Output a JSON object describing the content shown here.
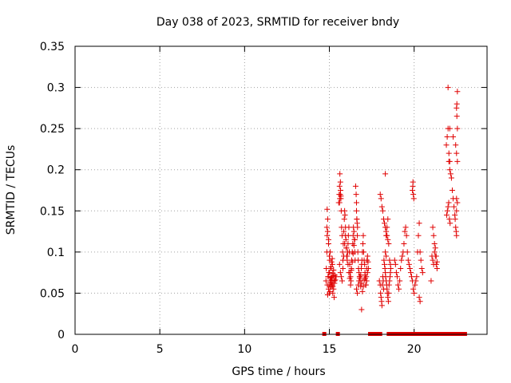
{
  "chart_data": {
    "type": "scatter",
    "title": "Day 038 of 2023, SRMTID for receiver bndy",
    "xlabel": "GPS time / hours",
    "ylabel": "SRMTID / TECUs",
    "xlim": [
      0,
      24.3
    ],
    "ylim": [
      0,
      0.35
    ],
    "xticks": [
      0,
      5,
      10,
      15,
      20
    ],
    "xtick_labels": [
      "0",
      "5",
      "10",
      "15",
      "20"
    ],
    "yticks": [
      0,
      0.05,
      0.1,
      0.15,
      0.2,
      0.25,
      0.3,
      0.35
    ],
    "ytick_labels": [
      "0",
      "0.05",
      "0.1",
      "0.15",
      "0.2",
      "0.25",
      "0.3",
      "0.35"
    ],
    "grid": true,
    "marker": "+",
    "color": "#e00000",
    "series": [
      {
        "name": "SRMTID",
        "x": [
          14.8,
          14.82,
          14.85,
          14.87,
          14.9,
          14.93,
          14.95,
          14.98,
          15.0,
          15.02,
          15.05,
          15.07,
          15.1,
          15.12,
          15.15,
          15.18,
          15.2,
          15.22,
          15.25,
          15.28,
          15.3,
          15.32,
          14.85,
          14.9,
          14.95,
          15.0,
          15.05,
          15.1,
          15.15,
          15.2,
          14.88,
          14.92,
          14.97,
          15.03,
          15.08,
          15.13,
          15.17,
          15.23,
          14.87,
          14.95,
          15.05,
          15.15,
          15.25,
          14.9,
          15.0,
          15.1,
          15.2,
          15.3,
          15.35,
          15.4,
          15.55,
          15.58,
          15.6,
          15.62,
          15.65,
          15.68,
          15.7,
          15.72,
          15.75,
          15.78,
          15.8,
          15.82,
          15.85,
          15.88,
          15.9,
          15.92,
          15.95,
          15.98,
          16.0,
          16.02,
          16.05,
          16.08,
          16.1,
          16.12,
          16.15,
          16.18,
          16.2,
          16.22,
          16.25,
          16.28,
          16.3,
          16.32,
          16.35,
          16.38,
          16.4,
          16.42,
          16.45,
          16.48,
          16.5,
          16.52,
          15.6,
          15.65,
          15.7,
          15.75,
          15.8,
          15.85,
          15.9,
          15.95,
          16.0,
          16.05,
          16.1,
          16.15,
          16.2,
          16.25,
          16.3,
          16.35,
          16.4,
          16.45,
          16.5,
          15.6,
          15.62,
          15.64,
          15.66,
          15.68,
          16.55,
          16.58,
          16.6,
          16.62,
          16.65,
          16.68,
          16.7,
          16.72,
          16.75,
          16.78,
          16.8,
          16.82,
          16.85,
          16.88,
          16.9,
          16.92,
          16.95,
          16.98,
          17.0,
          17.02,
          17.05,
          17.08,
          17.1,
          17.12,
          17.15,
          17.18,
          17.2,
          17.22,
          17.25,
          17.28,
          16.6,
          16.65,
          16.7,
          16.75,
          16.8,
          16.85,
          16.9,
          16.95,
          17.0,
          17.05,
          17.1,
          17.15,
          17.2,
          16.6,
          16.62,
          16.64,
          16.66,
          16.9,
          17.3,
          17.25,
          17.95,
          18.0,
          18.02,
          18.05,
          18.08,
          18.1,
          18.12,
          18.15,
          18.18,
          18.2,
          18.22,
          18.25,
          18.28,
          18.3,
          18.32,
          18.35,
          18.38,
          18.4,
          18.42,
          18.45,
          18.48,
          18.5,
          18.52,
          18.55,
          18.58,
          18.6,
          18.62,
          18.0,
          18.05,
          18.1,
          18.15,
          18.2,
          18.25,
          18.3,
          18.35,
          18.4,
          18.45,
          18.5,
          18.55,
          18.6,
          18.3,
          18.35,
          18.4,
          18.45,
          18.3,
          18.35,
          18.85,
          18.9,
          18.95,
          19.0,
          19.05,
          19.1,
          19.15,
          19.2,
          19.25,
          19.3,
          19.35,
          19.4,
          19.45,
          19.5,
          19.55,
          19.6,
          19.65,
          19.7,
          19.75,
          19.8,
          19.85,
          19.9,
          19.95,
          20.0,
          20.05,
          20.1,
          20.15,
          20.2,
          20.25,
          20.3,
          20.35,
          20.4,
          20.45,
          20.5,
          19.9,
          19.92,
          19.95,
          19.98,
          19.93,
          20.3,
          20.35,
          21.05,
          21.1,
          21.15,
          21.2,
          21.25,
          21.3,
          21.35,
          21.1,
          21.15,
          21.2,
          21.25,
          21.3,
          21.0,
          21.35,
          21.9,
          21.95,
          22.0,
          22.05,
          22.1,
          21.92,
          21.96,
          22.0,
          22.04,
          22.08,
          22.12,
          22.0,
          22.05,
          22.1,
          22.15,
          22.2,
          22.25,
          22.3,
          22.35,
          22.4,
          22.42,
          22.45,
          22.48,
          22.5,
          22.52,
          22.55,
          22.5,
          22.52,
          22.55,
          22.5,
          22.55,
          22.5,
          22.55,
          22.5,
          22.1,
          22.3,
          22.45
        ],
        "y": [
          0.065,
          0.08,
          0.1,
          0.12,
          0.14,
          0.07,
          0.055,
          0.06,
          0.075,
          0.09,
          0.065,
          0.08,
          0.07,
          0.058,
          0.06,
          0.085,
          0.05,
          0.062,
          0.078,
          0.045,
          0.065,
          0.072,
          0.13,
          0.125,
          0.11,
          0.095,
          0.1,
          0.082,
          0.068,
          0.058,
          0.06,
          0.07,
          0.075,
          0.052,
          0.063,
          0.088,
          0.092,
          0.071,
          0.152,
          0.115,
          0.058,
          0.066,
          0.055,
          0.048,
          0.05,
          0.069,
          0.074,
          0.062,
          0.066,
          0.07,
          0.16,
          0.17,
          0.18,
          0.195,
          0.185,
          0.165,
          0.15,
          0.13,
          0.12,
          0.1,
          0.09,
          0.11,
          0.125,
          0.14,
          0.15,
          0.145,
          0.13,
          0.115,
          0.105,
          0.095,
          0.09,
          0.1,
          0.11,
          0.12,
          0.13,
          0.1,
          0.085,
          0.075,
          0.07,
          0.065,
          0.08,
          0.09,
          0.1,
          0.11,
          0.12,
          0.13,
          0.125,
          0.115,
          0.1,
          0.09,
          0.085,
          0.075,
          0.07,
          0.065,
          0.08,
          0.095,
          0.11,
          0.12,
          0.105,
          0.095,
          0.085,
          0.075,
          0.068,
          0.06,
          0.078,
          0.088,
          0.098,
          0.108,
          0.115,
          0.16,
          0.165,
          0.17,
          0.175,
          0.168,
          0.18,
          0.17,
          0.16,
          0.14,
          0.12,
          0.1,
          0.09,
          0.08,
          0.075,
          0.07,
          0.068,
          0.065,
          0.072,
          0.08,
          0.085,
          0.09,
          0.1,
          0.11,
          0.12,
          0.1,
          0.09,
          0.085,
          0.075,
          0.068,
          0.06,
          0.07,
          0.08,
          0.09,
          0.095,
          0.088,
          0.055,
          0.05,
          0.06,
          0.065,
          0.07,
          0.058,
          0.062,
          0.052,
          0.058,
          0.066,
          0.072,
          0.06,
          0.065,
          0.15,
          0.14,
          0.135,
          0.13,
          0.03,
          0.08,
          0.075,
          0.065,
          0.06,
          0.05,
          0.045,
          0.04,
          0.035,
          0.06,
          0.07,
          0.065,
          0.055,
          0.09,
          0.085,
          0.08,
          0.075,
          0.07,
          0.065,
          0.06,
          0.055,
          0.05,
          0.045,
          0.04,
          0.05,
          0.06,
          0.065,
          0.07,
          0.075,
          0.08,
          0.17,
          0.165,
          0.155,
          0.15,
          0.14,
          0.135,
          0.13,
          0.125,
          0.12,
          0.115,
          0.11,
          0.09,
          0.085,
          0.195,
          0.12,
          0.13,
          0.14,
          0.1,
          0.095,
          0.09,
          0.085,
          0.075,
          0.07,
          0.06,
          0.055,
          0.065,
          0.08,
          0.09,
          0.095,
          0.1,
          0.11,
          0.125,
          0.13,
          0.12,
          0.1,
          0.09,
          0.085,
          0.08,
          0.075,
          0.07,
          0.065,
          0.055,
          0.05,
          0.06,
          0.065,
          0.07,
          0.1,
          0.12,
          0.135,
          0.1,
          0.09,
          0.08,
          0.075,
          0.175,
          0.18,
          0.17,
          0.165,
          0.185,
          0.045,
          0.04,
          0.095,
          0.09,
          0.085,
          0.1,
          0.105,
          0.095,
          0.088,
          0.13,
          0.12,
          0.11,
          0.095,
          0.085,
          0.065,
          0.08,
          0.23,
          0.24,
          0.25,
          0.22,
          0.21,
          0.145,
          0.15,
          0.155,
          0.16,
          0.14,
          0.135,
          0.3,
          0.21,
          0.2,
          0.195,
          0.19,
          0.175,
          0.165,
          0.155,
          0.145,
          0.14,
          0.13,
          0.125,
          0.12,
          0.28,
          0.295,
          0.275,
          0.265,
          0.25,
          0.22,
          0.21,
          0.165,
          0.16,
          0.15,
          0.25,
          0.24,
          0.23
        ]
      }
    ],
    "zero_x": [
      14.7,
      15.5,
      17.4,
      17.5,
      17.6,
      17.7,
      17.8,
      17.9,
      18.0,
      18.5,
      18.6,
      18.7,
      18.9,
      19.0,
      19.1,
      19.2,
      19.3,
      19.4,
      19.6,
      19.8,
      20.0,
      20.2,
      20.4,
      20.6,
      20.7,
      20.8,
      20.9,
      21.0,
      21.1,
      21.3,
      21.5,
      21.6,
      21.7,
      21.8,
      21.9,
      22.1,
      22.2,
      22.3,
      22.5,
      22.6,
      22.8,
      22.9,
      23.0
    ]
  }
}
